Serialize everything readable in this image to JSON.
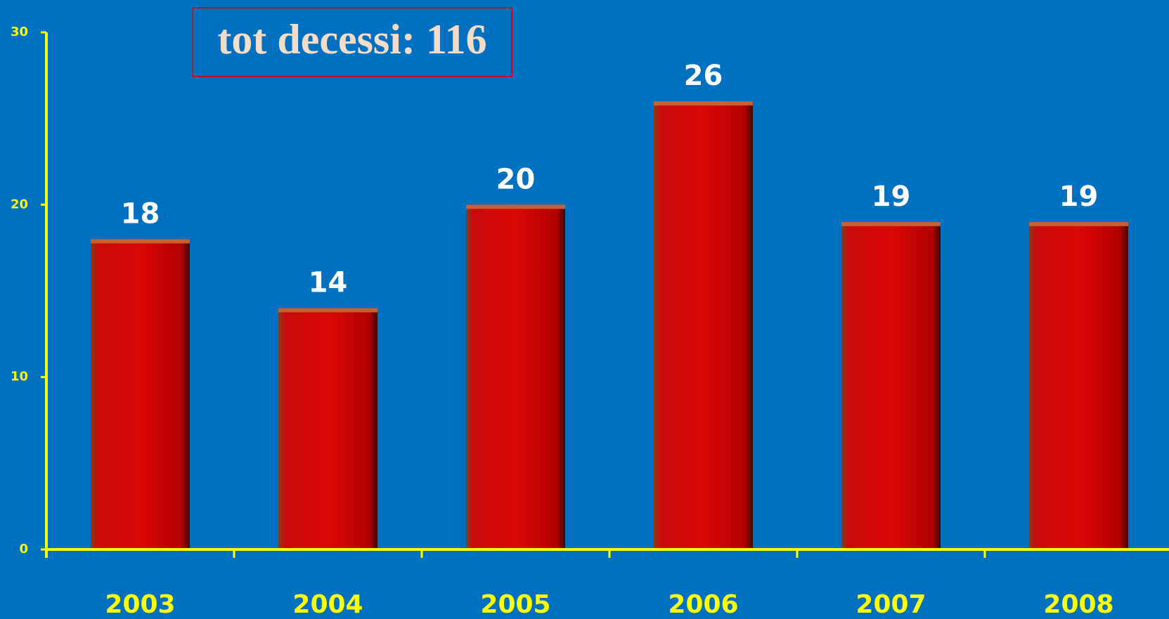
{
  "chart_data": {
    "type": "bar",
    "annotation": "tot decessi: 116",
    "categories": [
      "2003",
      "2004",
      "2005",
      "2006",
      "2007",
      "2008"
    ],
    "values": [
      18,
      14,
      20,
      26,
      19,
      19
    ],
    "color": "#d40404",
    "ylim": [
      0,
      30
    ],
    "yticks": [
      0,
      10,
      20,
      30
    ],
    "grid": false
  }
}
